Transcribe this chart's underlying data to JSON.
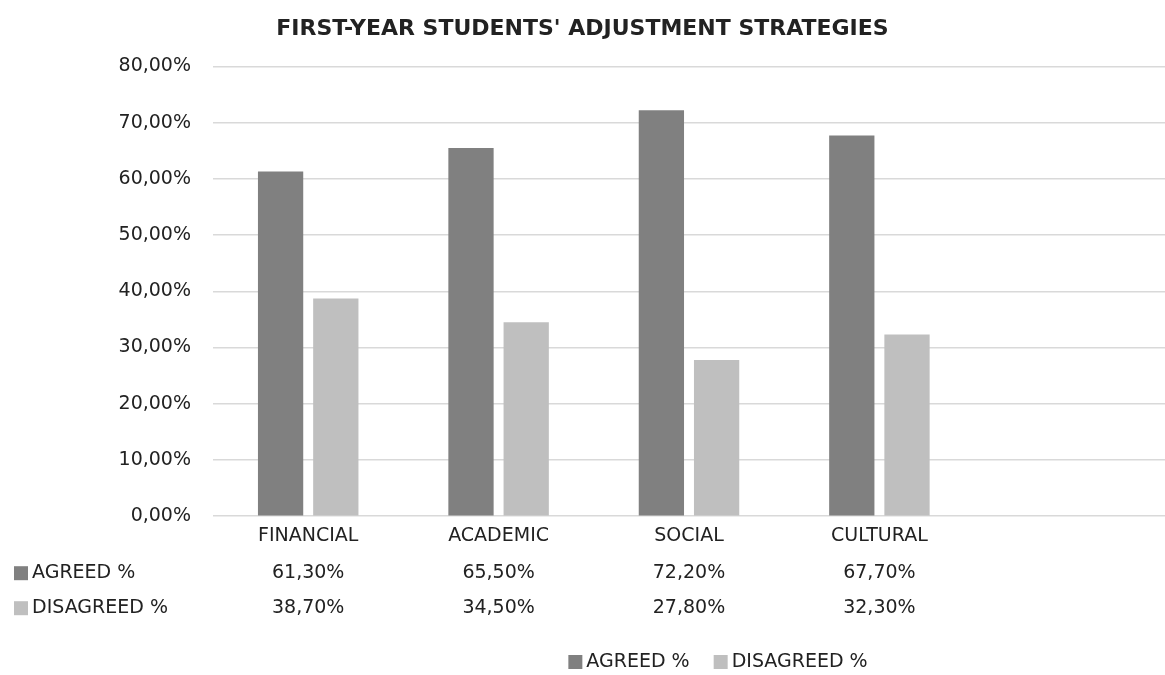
{
  "chart_data": {
    "type": "bar",
    "title": "FIRST-YEAR STUDENTS' ADJUSTMENT STRATEGIES",
    "categories": [
      "FINANCIAL",
      "ACADEMIC",
      "SOCIAL",
      "CULTURAL",
      null
    ],
    "series": [
      {
        "name": "AGREED %",
        "color": "#808080",
        "values": [
          61.3,
          65.5,
          72.2,
          67.7,
          null
        ],
        "value_labels": [
          "61,30%",
          "65,50%",
          "72,20%",
          "67,70%",
          null
        ]
      },
      {
        "name": "DISAGREED %",
        "color": "#bfbfbf",
        "values": [
          38.7,
          34.5,
          27.8,
          32.3,
          null
        ],
        "value_labels": [
          "38,70%",
          "34,50%",
          "27,80%",
          "32,30%",
          null
        ]
      }
    ],
    "ylim": [
      0,
      80
    ],
    "yticks": [
      {
        "value": 0,
        "label": "0,00%"
      },
      {
        "value": 10,
        "label": "10,00%"
      },
      {
        "value": 20,
        "label": "20,00%"
      },
      {
        "value": 30,
        "label": "30,00%"
      },
      {
        "value": 40,
        "label": "40,00%"
      },
      {
        "value": 50,
        "label": "50,00%"
      },
      {
        "value": 60,
        "label": "60,00%"
      },
      {
        "value": 70,
        "label": "70,00%"
      },
      {
        "value": 80,
        "label": "80,00%"
      }
    ],
    "grid": "y",
    "legend": "bottom"
  }
}
